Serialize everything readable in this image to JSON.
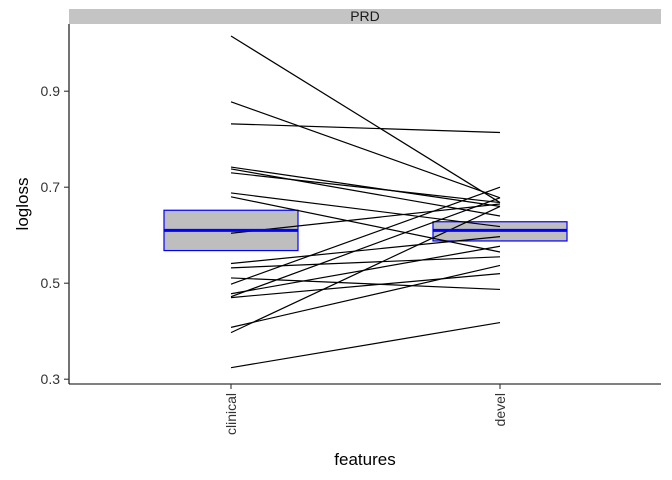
{
  "chart_data": {
    "type": "boxplot-with-paired-lines",
    "panel_label": "PRD",
    "xlabel": "features",
    "ylabel": "logloss",
    "categories": [
      "clinical",
      "devel"
    ],
    "ylim": [
      0.29,
      1.04
    ],
    "yticks": [
      0.3,
      0.5,
      0.7,
      0.9
    ],
    "ytick_labels": [
      "0.3",
      "0.5",
      "0.7",
      "0.9"
    ],
    "boxes": [
      {
        "category": "clinical",
        "q1": 0.568,
        "median": 0.61,
        "q3": 0.652
      },
      {
        "category": "devel",
        "q1": 0.588,
        "median": 0.61,
        "q3": 0.628
      }
    ],
    "paired_values": [
      [
        1.015,
        0.668
      ],
      [
        0.878,
        0.678
      ],
      [
        0.832,
        0.814
      ],
      [
        0.742,
        0.66
      ],
      [
        0.738,
        0.64
      ],
      [
        0.73,
        0.668
      ],
      [
        0.688,
        0.618
      ],
      [
        0.68,
        0.565
      ],
      [
        0.604,
        0.665
      ],
      [
        0.541,
        0.597
      ],
      [
        0.532,
        0.555
      ],
      [
        0.511,
        0.487
      ],
      [
        0.498,
        0.7
      ],
      [
        0.478,
        0.577
      ],
      [
        0.472,
        0.678
      ],
      [
        0.47,
        0.52
      ],
      [
        0.408,
        0.537
      ],
      [
        0.397,
        0.66
      ],
      [
        0.324,
        0.418
      ]
    ],
    "colors": {
      "box_fill": "#bebebe",
      "box_border": "#0000ff",
      "median": "#0000ff",
      "lines": "#000000",
      "strip_fill": "#c4c4c4"
    },
    "grid": false
  }
}
